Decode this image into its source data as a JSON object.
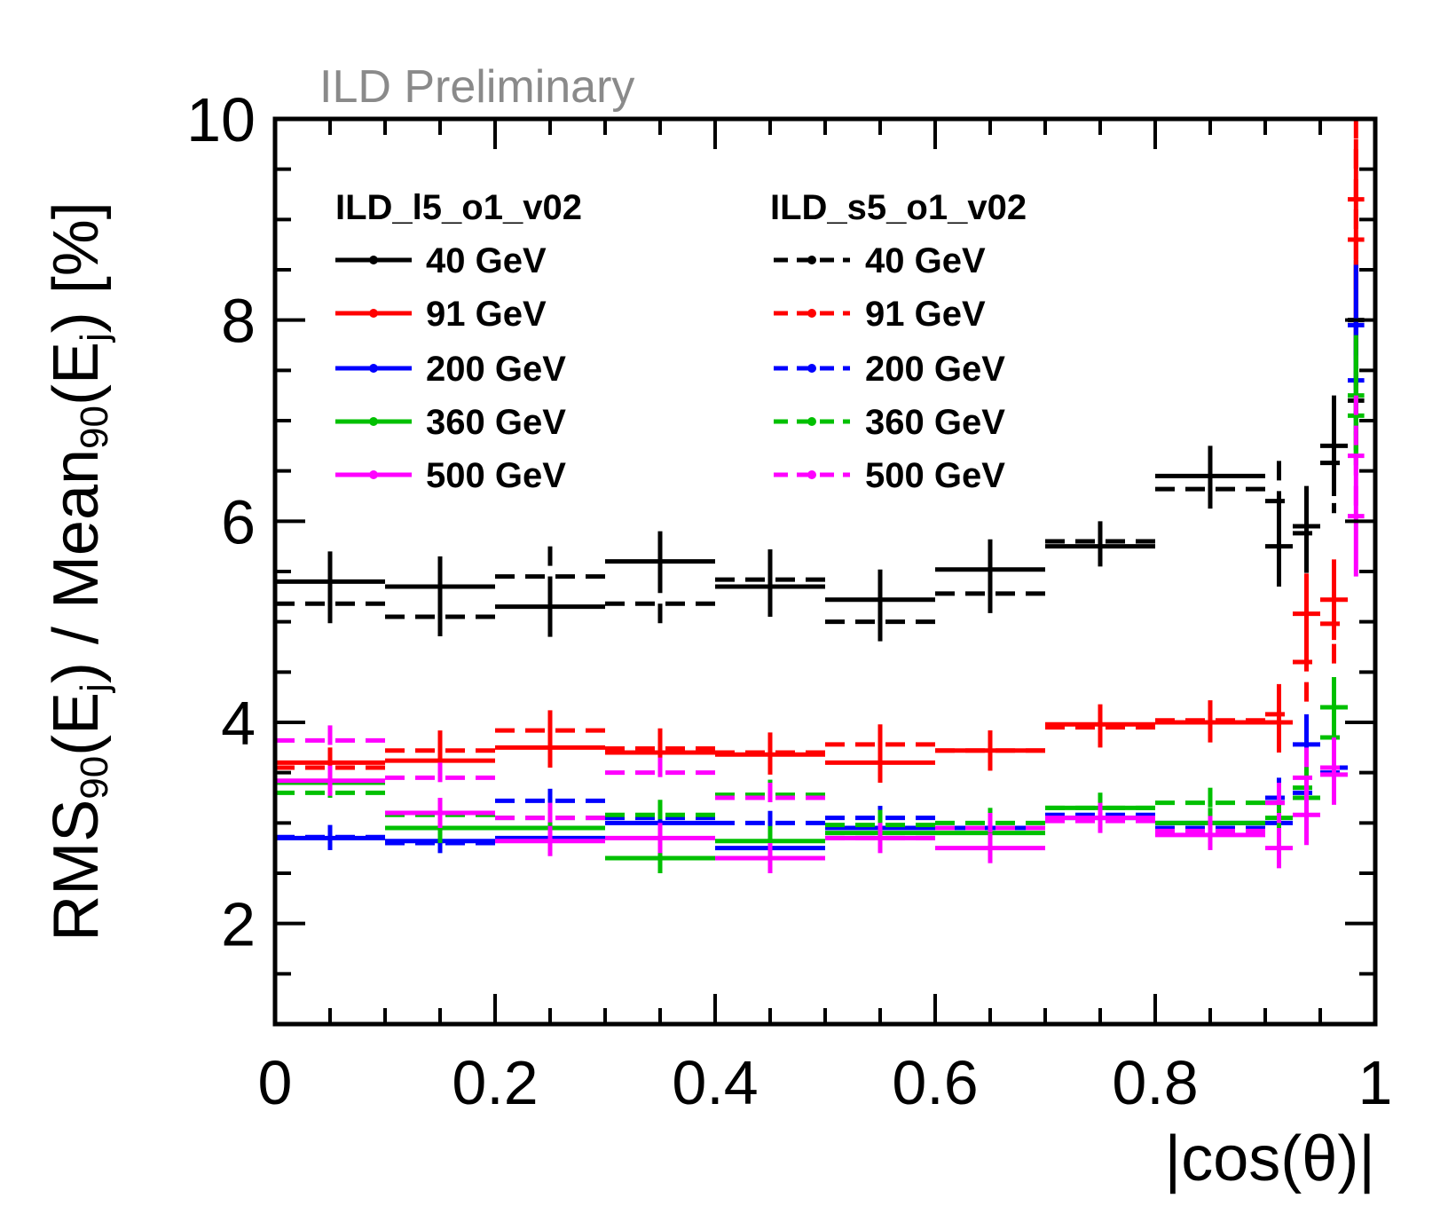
{
  "chart_data": {
    "type": "scatter",
    "watermark": "ILD Preliminary",
    "xlabel": "|cos(θ)|",
    "ylabel": {
      "p1": "RMS",
      "p1sub": "90",
      "p2": "(E",
      "p2sub": "j",
      "p3": ") / Mean",
      "p3sub": "90",
      "p4": "(E",
      "p4sub": "j",
      "p5": ") [%]"
    },
    "xlim": [
      0,
      1
    ],
    "ylim": [
      1,
      10
    ],
    "x_ticks": [
      "0",
      "0.2",
      "0.4",
      "0.6",
      "0.8",
      "1"
    ],
    "y_ticks": [
      "2",
      "4",
      "6",
      "8",
      "10"
    ],
    "legend": {
      "large_title": "ILD_l5_o1_v02",
      "small_title": "ILD_s5_o1_v02",
      "entries": [
        "40 GeV",
        "91 GeV",
        "200 GeV",
        "360 GeV",
        "500 GeV"
      ]
    },
    "colors": {
      "40 GeV": "#000000",
      "91 GeV": "#ff0000",
      "200 GeV": "#0000ff",
      "360 GeV": "#00c000",
      "500 GeV": "#ff00ff"
    },
    "bins": [
      [
        0,
        0.1
      ],
      [
        0.1,
        0.2
      ],
      [
        0.2,
        0.3
      ],
      [
        0.3,
        0.4
      ],
      [
        0.4,
        0.5
      ],
      [
        0.5,
        0.6
      ],
      [
        0.6,
        0.7
      ],
      [
        0.7,
        0.8
      ],
      [
        0.8,
        0.9
      ],
      [
        0.9,
        0.925
      ],
      [
        0.925,
        0.95
      ],
      [
        0.95,
        0.975
      ],
      [
        0.975,
        0.99
      ]
    ],
    "series": [
      {
        "name": "40 GeV",
        "detector": "ILD_l5_o1_v02",
        "style": "solid",
        "values": [
          5.4,
          5.35,
          5.15,
          5.6,
          5.35,
          5.22,
          5.52,
          5.75,
          6.45,
          5.75,
          5.95,
          6.75,
          8.0
        ],
        "errors": [
          0.3,
          0.3,
          0.3,
          0.3,
          0.3,
          0.3,
          0.3,
          0.2,
          0.3,
          0.4,
          0.4,
          0.5,
          0.6
        ]
      },
      {
        "name": "40 GeV",
        "detector": "ILD_s5_o1_v02",
        "style": "dashed",
        "values": [
          5.18,
          5.05,
          5.45,
          5.18,
          5.42,
          5.0,
          5.28,
          5.8,
          6.32,
          6.2,
          5.88,
          6.58,
          7.2
        ],
        "errors": [
          0.3,
          0.3,
          0.3,
          0.3,
          0.3,
          0.3,
          0.3,
          0.2,
          0.3,
          0.4,
          0.4,
          0.5,
          0.6
        ]
      },
      {
        "name": "91 GeV",
        "detector": "ILD_l5_o1_v02",
        "style": "solid",
        "values": [
          3.6,
          3.62,
          3.75,
          3.7,
          3.68,
          3.6,
          3.72,
          3.98,
          4.0,
          4.0,
          5.08,
          5.22,
          8.8
        ],
        "errors": [
          0.15,
          0.2,
          0.2,
          0.2,
          0.2,
          0.2,
          0.2,
          0.2,
          0.2,
          0.3,
          0.4,
          0.4,
          1.0
        ]
      },
      {
        "name": "91 GeV",
        "detector": "ILD_s5_o1_v02",
        "style": "dashed",
        "values": [
          3.55,
          3.72,
          3.92,
          3.74,
          3.7,
          3.78,
          3.72,
          3.95,
          4.02,
          4.08,
          4.6,
          4.98,
          9.2
        ],
        "errors": [
          0.15,
          0.2,
          0.2,
          0.2,
          0.2,
          0.2,
          0.2,
          0.2,
          0.2,
          0.3,
          0.4,
          0.4,
          1.0
        ]
      },
      {
        "name": "200 GeV",
        "detector": "ILD_l5_o1_v02",
        "style": "solid",
        "values": [
          2.85,
          2.82,
          2.85,
          3.0,
          2.75,
          2.95,
          2.95,
          3.05,
          3.0,
          3.0,
          3.78,
          3.55,
          7.95
        ],
        "errors": [
          0.12,
          0.12,
          0.12,
          0.12,
          0.12,
          0.12,
          0.12,
          0.12,
          0.12,
          0.2,
          0.3,
          0.3,
          0.6
        ]
      },
      {
        "name": "200 GeV",
        "detector": "ILD_s5_o1_v02",
        "style": "dashed",
        "values": [
          2.86,
          2.8,
          3.22,
          3.05,
          3.0,
          3.05,
          2.95,
          3.08,
          2.95,
          3.25,
          3.3,
          3.5,
          7.4
        ],
        "errors": [
          0.12,
          0.12,
          0.12,
          0.12,
          0.12,
          0.12,
          0.12,
          0.12,
          0.12,
          0.2,
          0.3,
          0.3,
          0.6
        ]
      },
      {
        "name": "360 GeV",
        "detector": "ILD_l5_o1_v02",
        "style": "solid",
        "values": [
          3.4,
          2.95,
          2.95,
          2.65,
          2.82,
          2.9,
          2.9,
          3.15,
          3.0,
          3.05,
          3.25,
          4.15,
          7.25
        ],
        "errors": [
          0.15,
          0.15,
          0.15,
          0.15,
          0.15,
          0.15,
          0.15,
          0.15,
          0.15,
          0.2,
          0.3,
          0.3,
          0.6
        ]
      },
      {
        "name": "360 GeV",
        "detector": "ILD_s5_o1_v02",
        "style": "dashed",
        "values": [
          3.3,
          3.08,
          3.05,
          3.08,
          3.28,
          2.98,
          3.0,
          3.15,
          3.2,
          3.2,
          3.35,
          3.85,
          7.05
        ],
        "errors": [
          0.15,
          0.15,
          0.15,
          0.15,
          0.15,
          0.15,
          0.15,
          0.15,
          0.15,
          0.2,
          0.3,
          0.3,
          0.6
        ]
      },
      {
        "name": "500 GeV",
        "detector": "ILD_l5_o1_v02",
        "style": "solid",
        "values": [
          3.42,
          3.1,
          2.82,
          2.85,
          2.65,
          2.85,
          2.75,
          3.05,
          2.88,
          2.75,
          3.08,
          3.48,
          6.05
        ],
        "errors": [
          0.15,
          0.15,
          0.15,
          0.15,
          0.15,
          0.15,
          0.15,
          0.15,
          0.15,
          0.2,
          0.3,
          0.3,
          0.6
        ]
      },
      {
        "name": "500 GeV",
        "detector": "ILD_s5_o1_v02",
        "style": "dashed",
        "values": [
          3.82,
          3.45,
          3.05,
          3.5,
          3.25,
          2.85,
          2.95,
          3.02,
          2.92,
          3.2,
          3.45,
          3.55,
          6.65
        ],
        "errors": [
          0.15,
          0.15,
          0.15,
          0.15,
          0.15,
          0.15,
          0.15,
          0.15,
          0.15,
          0.2,
          0.3,
          0.3,
          0.6
        ]
      }
    ]
  }
}
